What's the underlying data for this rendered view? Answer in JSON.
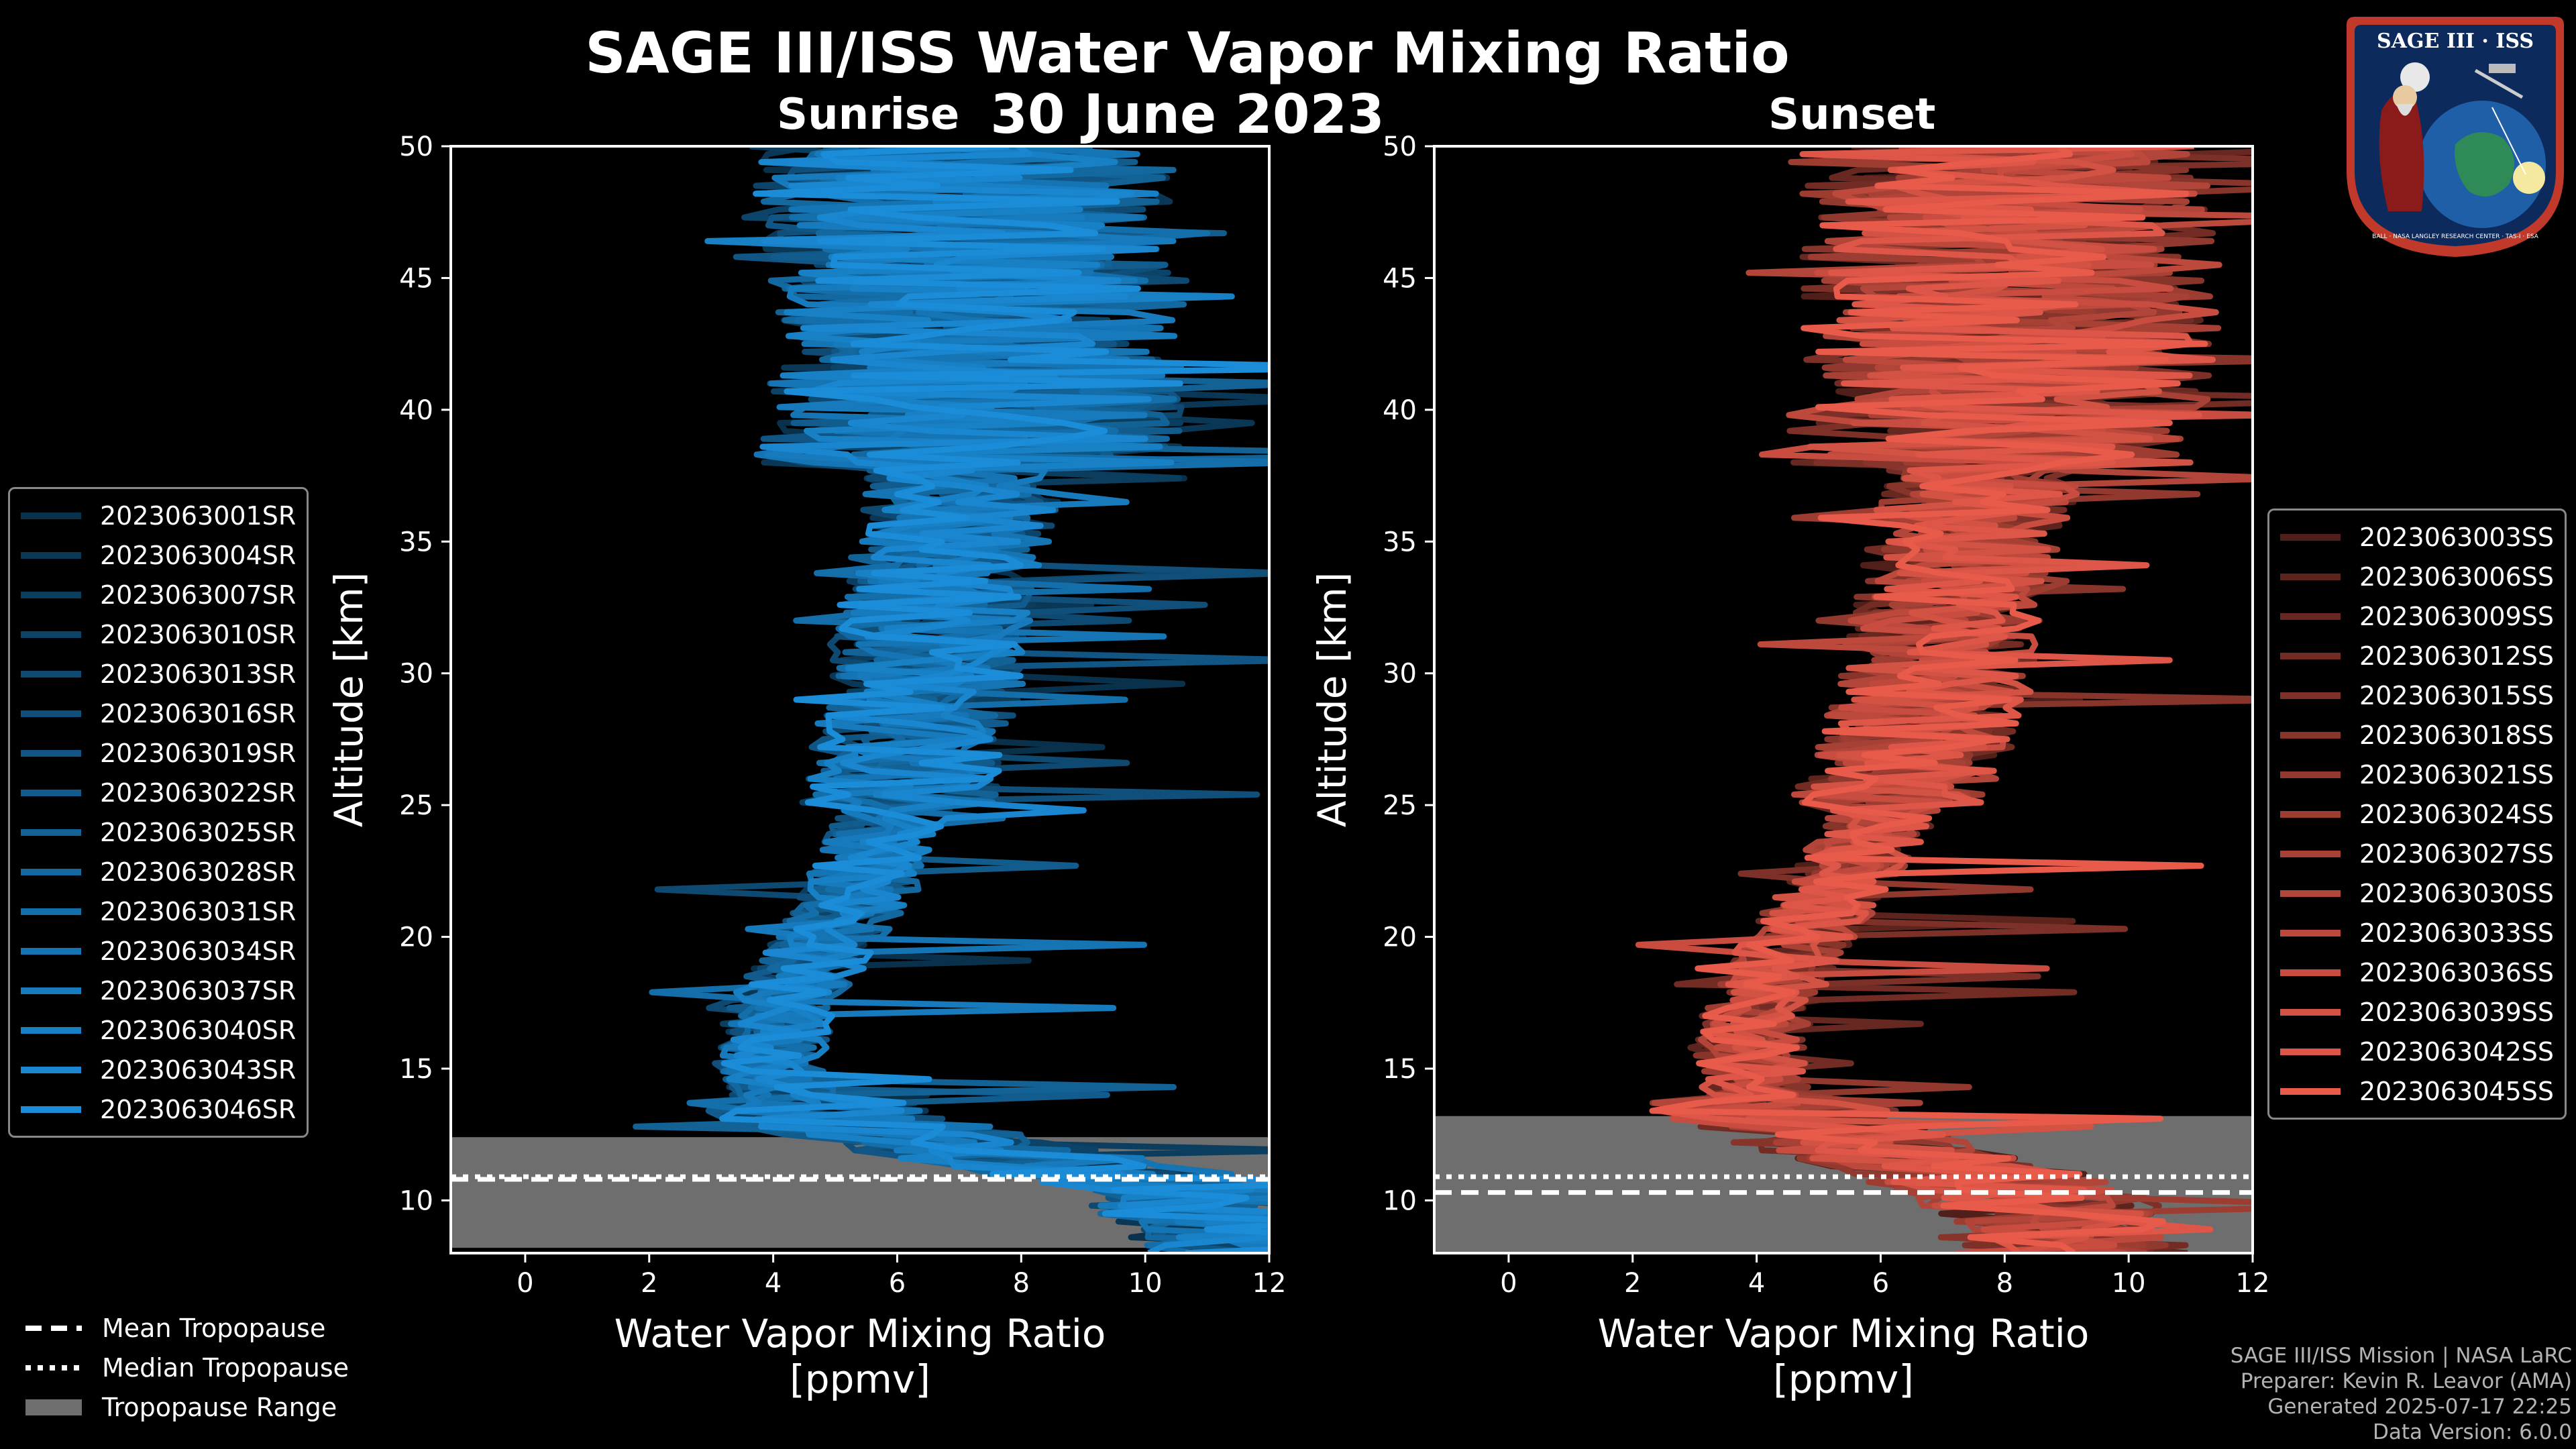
{
  "title": "SAGE III/ISS Water Vapor Mixing Ratio",
  "date": "30 June 2023",
  "colors": {
    "sunrise": "#1a8cd8",
    "sunset": "#e85a4a",
    "tropo": "#6e6e6e"
  },
  "chart_data": [
    {
      "type": "line",
      "title": "Sunrise",
      "xlabel": "Water Vapor Mixing Ratio\n[ppmv]",
      "ylabel": "Altitude [km]",
      "xlim": [
        -1.2,
        12
      ],
      "ylim": [
        8,
        50
      ],
      "xticks": [
        0,
        2,
        4,
        6,
        8,
        10,
        12
      ],
      "yticks": [
        10,
        15,
        20,
        25,
        30,
        35,
        40,
        45,
        50
      ],
      "tropopause": {
        "mean": 10.8,
        "median": 10.9,
        "range": [
          8.2,
          12.4
        ]
      },
      "series": [
        "2023063001SR",
        "2023063004SR",
        "2023063007SR",
        "2023063010SR",
        "2023063013SR",
        "2023063016SR",
        "2023063019SR",
        "2023063022SR",
        "2023063025SR",
        "2023063028SR",
        "2023063031SR",
        "2023063034SR",
        "2023063037SR",
        "2023063040SR",
        "2023063043SR",
        "2023063046SR"
      ],
      "profile": {
        "alt": [
          8,
          10,
          11,
          12,
          13,
          13.5,
          14,
          15,
          16,
          17,
          18,
          19,
          20,
          21,
          22,
          23,
          24,
          25,
          26,
          27,
          28,
          29,
          30,
          31,
          32,
          33,
          34,
          35,
          36,
          37,
          38,
          39,
          40,
          41,
          42,
          43,
          44,
          45,
          46,
          47,
          48,
          49,
          50
        ],
        "ppmv": [
          12,
          11,
          9.5,
          7,
          5.2,
          4.6,
          4.2,
          4.0,
          4.0,
          4.1,
          4.3,
          4.6,
          4.9,
          5.2,
          5.4,
          5.6,
          5.8,
          6.0,
          6.1,
          6.2,
          6.3,
          6.4,
          6.5,
          6.5,
          6.6,
          6.7,
          6.8,
          6.9,
          7.0,
          7.1,
          7.1,
          7.2,
          7.3,
          7.3,
          7.3,
          7.3,
          7.3,
          7.3,
          7.2,
          7.2,
          7.1,
          7.1,
          7.0
        ]
      }
    },
    {
      "type": "line",
      "title": "Sunset",
      "xlabel": "Water Vapor Mixing Ratio\n[ppmv]",
      "ylabel": "Altitude [km]",
      "xlim": [
        -1.2,
        12
      ],
      "ylim": [
        8,
        50
      ],
      "xticks": [
        0,
        2,
        4,
        6,
        8,
        10,
        12
      ],
      "yticks": [
        10,
        15,
        20,
        25,
        30,
        35,
        40,
        45,
        50
      ],
      "tropopause": {
        "mean": 10.3,
        "median": 10.9,
        "range": [
          8.0,
          13.2
        ]
      },
      "series": [
        "2023063003SS",
        "2023063006SS",
        "2023063009SS",
        "2023063012SS",
        "2023063015SS",
        "2023063018SS",
        "2023063021SS",
        "2023063024SS",
        "2023063027SS",
        "2023063030SS",
        "2023063033SS",
        "2023063036SS",
        "2023063039SS",
        "2023063042SS",
        "2023063045SS"
      ],
      "profile": {
        "alt": [
          8,
          10,
          11,
          12,
          13,
          14,
          15,
          16,
          17,
          18,
          19,
          20,
          21,
          22,
          23,
          24,
          25,
          26,
          27,
          28,
          29,
          30,
          31,
          32,
          33,
          34,
          35,
          36,
          37,
          38,
          39,
          40,
          41,
          42,
          43,
          44,
          45,
          46,
          47,
          48,
          49,
          50
        ],
        "ppmv": [
          9,
          8.5,
          7.5,
          5.8,
          4.5,
          4.0,
          3.9,
          3.9,
          4.0,
          4.2,
          4.4,
          4.7,
          5.0,
          5.3,
          5.6,
          5.9,
          6.1,
          6.3,
          6.5,
          6.6,
          6.8,
          6.9,
          7.0,
          7.1,
          7.2,
          7.3,
          7.4,
          7.5,
          7.6,
          7.7,
          7.8,
          7.9,
          8.0,
          8.0,
          8.1,
          8.1,
          8.1,
          8.1,
          8.0,
          8.0,
          7.9,
          7.9
        ]
      }
    }
  ],
  "bottom_legend": {
    "mean": "Mean Tropopause",
    "median": "Median Tropopause",
    "range": "Tropopause Range"
  },
  "credits": {
    "mission": "SAGE III/ISS Mission | NASA LaRC",
    "preparer": "Preparer: Kevin R. Leavor (AMA)",
    "generated": "Generated 2025-07-17 22:25",
    "version": "Data Version: 6.0.0"
  },
  "logo": {
    "name": "SAGE III · ISS",
    "ring_text": "BALL · NASA LANGLEY RESEARCH CENTER · TAS-I · ESA"
  }
}
